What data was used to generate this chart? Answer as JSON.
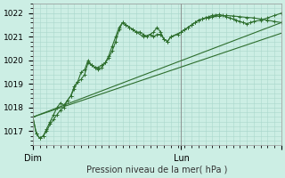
{
  "xlabel": "Pression niveau de la mer( hPa )",
  "bg_color": "#cceee4",
  "grid_color": "#aad8cc",
  "line_color": "#2d6e2d",
  "ylim": [
    1016.4,
    1022.4
  ],
  "xlim": [
    0,
    36
  ],
  "yticks": [
    1017,
    1018,
    1019,
    1020,
    1021,
    1022
  ],
  "xtick_positions": [
    0,
    21.5,
    36
  ],
  "xticklabels": [
    "Dim",
    "Lun",
    ""
  ],
  "vline_x": 21.5,
  "vline_color": "#888888",
  "series_with_markers": [
    {
      "x": [
        0,
        0.5,
        1,
        1.5,
        2,
        2.5,
        3,
        3.5,
        4,
        4.5,
        5,
        5.5,
        6,
        6.5,
        7,
        7.5,
        8,
        8.5,
        9,
        9.5,
        10,
        10.5,
        11,
        11.5,
        12,
        12.5,
        13,
        13.5,
        14,
        14.5,
        15,
        15.5,
        16,
        16.5,
        17,
        17.5,
        18,
        18.5,
        19,
        19.5,
        20,
        21,
        21.5,
        22,
        22.5,
        23,
        23.5,
        24,
        24.5,
        25,
        25.5,
        26,
        26.5,
        27,
        27.5,
        28,
        28.5,
        29,
        29.5,
        30,
        30.5,
        31,
        31.5,
        32,
        33,
        34,
        35,
        36
      ],
      "y": [
        1017.6,
        1016.9,
        1016.7,
        1016.8,
        1017.0,
        1017.3,
        1017.5,
        1017.7,
        1017.9,
        1018.0,
        1018.3,
        1018.5,
        1018.9,
        1019.1,
        1019.2,
        1019.4,
        1019.9,
        1019.8,
        1019.7,
        1019.7,
        1019.8,
        1019.9,
        1020.1,
        1020.4,
        1020.8,
        1021.3,
        1021.6,
        1021.5,
        1021.4,
        1021.3,
        1021.2,
        1021.2,
        1021.1,
        1021.0,
        1021.1,
        1021.2,
        1021.4,
        1021.2,
        1020.9,
        1020.8,
        1021.0,
        1021.1,
        1021.2,
        1021.3,
        1021.4,
        1021.5,
        1021.6,
        1021.7,
        1021.75,
        1021.8,
        1021.85,
        1021.9,
        1021.92,
        1021.94,
        1021.9,
        1021.85,
        1021.8,
        1021.75,
        1021.7,
        1021.65,
        1021.6,
        1021.55,
        1021.6,
        1021.65,
        1021.7,
        1021.8,
        1021.9,
        1022.0
      ]
    },
    {
      "x": [
        0,
        0.5,
        1,
        1.5,
        2,
        2.5,
        3,
        3.5,
        4,
        4.5,
        5,
        5.5,
        6,
        6.5,
        7,
        7.5,
        8,
        8.5,
        9,
        9.5,
        10,
        10.5,
        11,
        11.5,
        12,
        12.5,
        13,
        13.5,
        14,
        14.5,
        15,
        16,
        17,
        17.5,
        18,
        18.5,
        19,
        19.5,
        20,
        21.5,
        22,
        22.5,
        23,
        23.5,
        24,
        24.5,
        25,
        25.5,
        26,
        27,
        28,
        29,
        30,
        31,
        32,
        33,
        34,
        35,
        36
      ],
      "y": [
        1017.6,
        1016.9,
        1016.7,
        1016.8,
        1017.1,
        1017.4,
        1017.7,
        1018.0,
        1018.2,
        1018.1,
        1018.3,
        1018.5,
        1018.8,
        1019.1,
        1019.5,
        1019.6,
        1020.0,
        1019.8,
        1019.7,
        1019.6,
        1019.7,
        1019.9,
        1020.2,
        1020.6,
        1021.0,
        1021.4,
        1021.6,
        1021.5,
        1021.4,
        1021.3,
        1021.2,
        1021.0,
        1021.1,
        1021.0,
        1021.1,
        1021.1,
        1020.9,
        1020.8,
        1021.0,
        1021.2,
        1021.3,
        1021.4,
        1021.5,
        1021.6,
        1021.7,
        1021.75,
        1021.8,
        1021.82,
        1021.85,
        1021.88,
        1021.9,
        1021.88,
        1021.85,
        1021.82,
        1021.8,
        1021.75,
        1021.7,
        1021.65,
        1021.6
      ]
    }
  ],
  "series_smooth": [
    {
      "x": [
        0,
        36
      ],
      "y": [
        1017.6,
        1021.6
      ]
    },
    {
      "x": [
        0,
        36
      ],
      "y": [
        1017.6,
        1021.15
      ]
    }
  ]
}
